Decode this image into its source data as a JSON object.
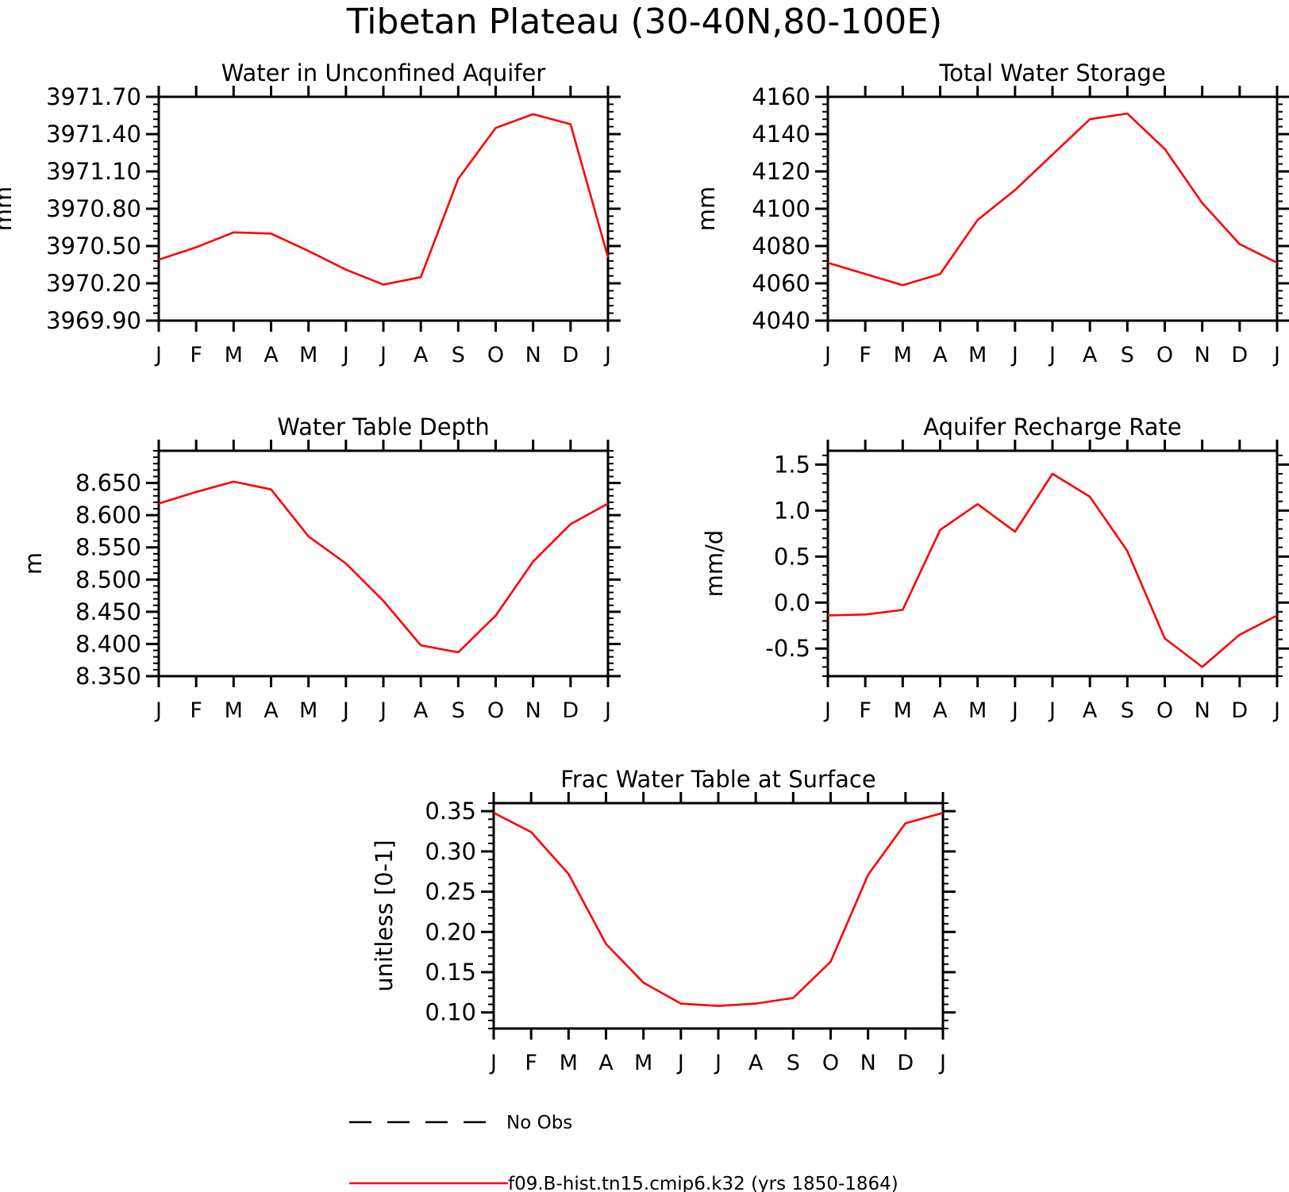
{
  "figure": {
    "title": "Tibetan Plateau (30-40N,80-100E)",
    "months": [
      "J",
      "F",
      "M",
      "A",
      "M",
      "J",
      "J",
      "A",
      "S",
      "O",
      "N",
      "D",
      "J"
    ]
  },
  "legend": {
    "obs_label": "No Obs",
    "model_label": "f09.B-hist.tn15.cmip6.k32 (yrs 1850-1864)",
    "model_color": "#ff0000",
    "obs_color": "#000000"
  },
  "chart_data": [
    {
      "type": "line",
      "title": "Water in Unconfined Aquifer",
      "xlabel": "",
      "ylabel": "mm",
      "ylim": [
        3969.9,
        3971.7
      ],
      "yticks": [
        "3969.90",
        "3970.20",
        "3970.50",
        "3970.80",
        "3971.10",
        "3971.40",
        "3971.70"
      ],
      "x": [
        "J",
        "F",
        "M",
        "A",
        "M",
        "J",
        "J",
        "A",
        "S",
        "O",
        "N",
        "D",
        "J"
      ],
      "series": [
        {
          "name": "f09.B-hist.tn15.cmip6.k32 (yrs 1850-1864)",
          "values": [
            3970.39,
            3970.49,
            3970.61,
            3970.6,
            3970.46,
            3970.31,
            3970.19,
            3970.25,
            3971.04,
            3971.45,
            3971.56,
            3971.48,
            3970.41
          ]
        }
      ]
    },
    {
      "type": "line",
      "title": "Total Water Storage",
      "xlabel": "",
      "ylabel": "mm",
      "ylim": [
        4040,
        4160
      ],
      "yticks": [
        "4040",
        "4060",
        "4080",
        "4100",
        "4120",
        "4140",
        "4160"
      ],
      "x": [
        "J",
        "F",
        "M",
        "A",
        "M",
        "J",
        "J",
        "A",
        "S",
        "O",
        "N",
        "D",
        "J"
      ],
      "series": [
        {
          "name": "f09.B-hist.tn15.cmip6.k32 (yrs 1850-1864)",
          "values": [
            4071,
            4065,
            4059,
            4065,
            4094,
            4110,
            4129,
            4148,
            4151,
            4132,
            4103,
            4081,
            4071
          ]
        }
      ]
    },
    {
      "type": "line",
      "title": "Water Table Depth",
      "xlabel": "",
      "ylabel": "m",
      "ylim": [
        8.35,
        8.7
      ],
      "yticks": [
        "8.350",
        "8.400",
        "8.450",
        "8.500",
        "8.550",
        "8.600",
        "8.650"
      ],
      "x": [
        "J",
        "F",
        "M",
        "A",
        "M",
        "J",
        "J",
        "A",
        "S",
        "O",
        "N",
        "D",
        "J"
      ],
      "series": [
        {
          "name": "f09.B-hist.tn15.cmip6.k32 (yrs 1850-1864)",
          "values": [
            8.618,
            8.636,
            8.652,
            8.64,
            8.567,
            8.525,
            8.467,
            8.398,
            8.387,
            8.444,
            8.528,
            8.586,
            8.618
          ]
        }
      ]
    },
    {
      "type": "line",
      "title": "Aquifer Recharge Rate",
      "xlabel": "",
      "ylabel": "mm/d",
      "ylim": [
        -0.8,
        1.65
      ],
      "yticks": [
        "-0.5",
        "0.0",
        "0.5",
        "1.0",
        "1.5"
      ],
      "x": [
        "J",
        "F",
        "M",
        "A",
        "M",
        "J",
        "J",
        "A",
        "S",
        "O",
        "N",
        "D",
        "J"
      ],
      "series": [
        {
          "name": "f09.B-hist.tn15.cmip6.k32 (yrs 1850-1864)",
          "values": [
            -0.14,
            -0.13,
            -0.08,
            0.79,
            1.07,
            0.77,
            1.4,
            1.15,
            0.56,
            -0.39,
            -0.7,
            -0.35,
            -0.14
          ]
        }
      ]
    },
    {
      "type": "line",
      "title": "Frac Water Table at Surface",
      "xlabel": "",
      "ylabel": "unitless [0-1]",
      "ylim": [
        0.08,
        0.36
      ],
      "yticks": [
        "0.10",
        "0.15",
        "0.20",
        "0.25",
        "0.30",
        "0.35"
      ],
      "x": [
        "J",
        "F",
        "M",
        "A",
        "M",
        "J",
        "J",
        "A",
        "S",
        "O",
        "N",
        "D",
        "J"
      ],
      "series": [
        {
          "name": "f09.B-hist.tn15.cmip6.k32 (yrs 1850-1864)",
          "values": [
            0.348,
            0.324,
            0.272,
            0.185,
            0.137,
            0.111,
            0.108,
            0.111,
            0.118,
            0.163,
            0.271,
            0.335,
            0.348
          ]
        }
      ]
    }
  ]
}
